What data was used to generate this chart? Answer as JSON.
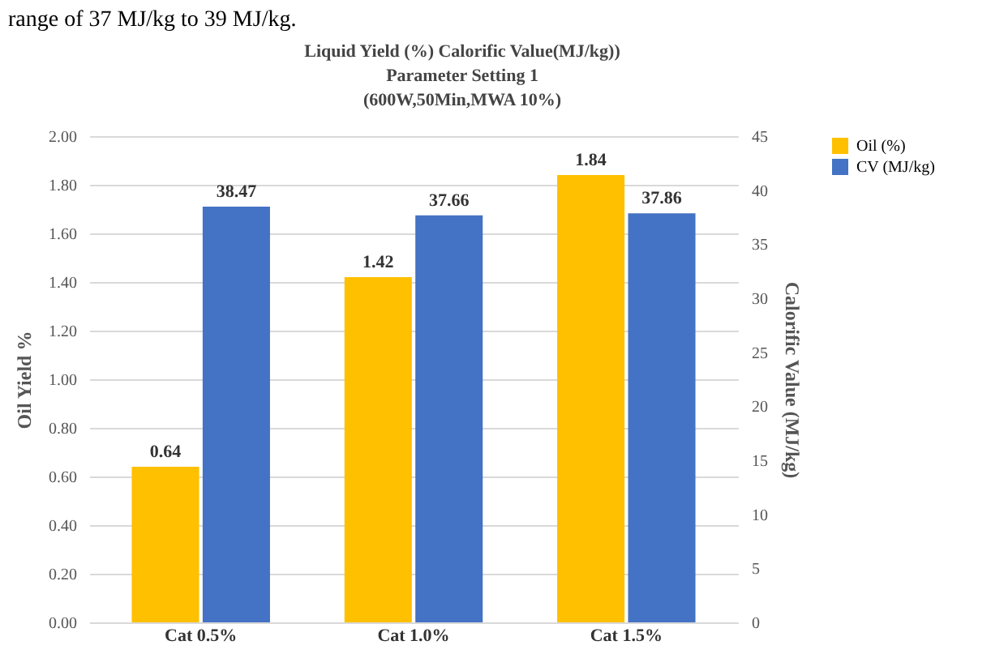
{
  "chart_data": {
    "type": "bar",
    "title": "Liquid Yield (%) Calorific Value(MJ/kg))",
    "subtitle": [
      "Parameter Setting 1",
      "(600W,50Min,MWA 10%)"
    ],
    "categories": [
      "Cat 0.5%",
      "Cat 1.0%",
      "Cat 1.5%"
    ],
    "series": [
      {
        "name": "Oil (%)",
        "color": "#ffc000",
        "values": [
          0.64,
          1.42,
          1.84
        ],
        "value_labels": [
          "0.64",
          "1.42",
          "1.84"
        ]
      },
      {
        "name": "CV (MJ/kg)",
        "color": "#4472c4",
        "values": [
          38.47,
          37.66,
          37.86
        ],
        "axis": "y2",
        "value_labels": [
          "38.47",
          "37.66",
          "37.86"
        ]
      }
    ],
    "ylabel": "Oil Yield %",
    "y2label": "Calorific Value (MJ/kg)",
    "ylim": [
      0,
      2
    ],
    "yticks": [
      {
        "value": 0,
        "label": "0.00"
      },
      {
        "value": 0.2,
        "label": "0.20"
      },
      {
        "value": 0.4,
        "label": "0.40"
      },
      {
        "value": 0.6,
        "label": "0.60"
      },
      {
        "value": 0.8,
        "label": "0.80"
      },
      {
        "value": 1,
        "label": "1.00"
      },
      {
        "value": 1.2,
        "label": "1.20"
      },
      {
        "value": 1.4,
        "label": "1.40"
      },
      {
        "value": 1.6,
        "label": "1.60"
      },
      {
        "value": 1.8,
        "label": "1.80"
      },
      {
        "value": 2,
        "label": "2.00"
      }
    ],
    "y2lim": [
      0,
      45
    ],
    "y2ticks": [
      0,
      5,
      10,
      15,
      20,
      25,
      30,
      35,
      40,
      45
    ],
    "grid": "y",
    "legend": "right",
    "annotations": [
      "range of 37 MJ/kg to 39 MJ/kg."
    ]
  }
}
